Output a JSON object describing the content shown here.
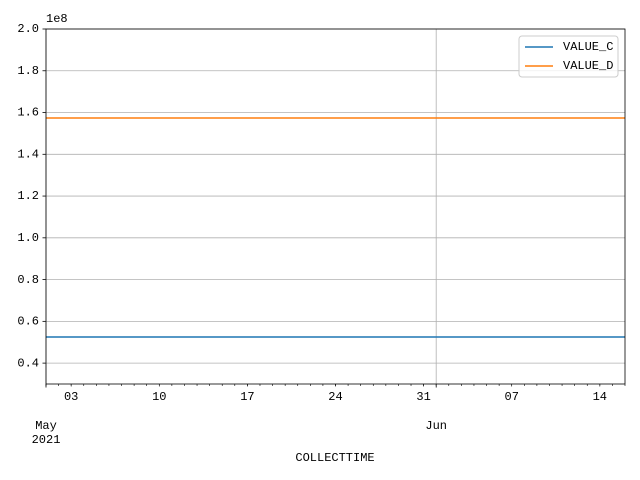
{
  "chart_data": {
    "type": "line",
    "y_offset_label": "1e8",
    "x_label": "COLLECTTIME",
    "x": [
      "2021-05-01",
      "2021-06-16"
    ],
    "series": [
      {
        "name": "VALUE_C",
        "color": "#1f77b4",
        "values": [
          0.525,
          0.525
        ]
      },
      {
        "name": "VALUE_D",
        "color": "#ff7f0e",
        "values": [
          1.574,
          1.574
        ]
      }
    ],
    "xlim": [
      "2021-05-01",
      "2021-06-16"
    ],
    "xticks": [
      {
        "value": "2021-05-01",
        "label": "May\n2021"
      },
      {
        "value": "2021-06-01",
        "label": "Jun"
      }
    ],
    "x_minor_ticks": [
      {
        "value": "2021-05-03",
        "label": "03"
      },
      {
        "value": "2021-05-10",
        "label": "10"
      },
      {
        "value": "2021-05-17",
        "label": "17"
      },
      {
        "value": "2021-05-24",
        "label": "24"
      },
      {
        "value": "2021-05-31",
        "label": "31"
      },
      {
        "value": "2021-06-07",
        "label": "07"
      },
      {
        "value": "2021-06-14",
        "label": "14"
      }
    ],
    "ylim": [
      0.3,
      2.0
    ],
    "yticks": [
      0.4,
      0.6,
      0.8,
      {
        "value": 1.0,
        "label": "1.0"
      },
      1.2,
      1.4,
      1.6,
      1.8,
      {
        "value": 2.0,
        "label": "2.0"
      }
    ],
    "grid": true,
    "legend_position": "upper right"
  }
}
